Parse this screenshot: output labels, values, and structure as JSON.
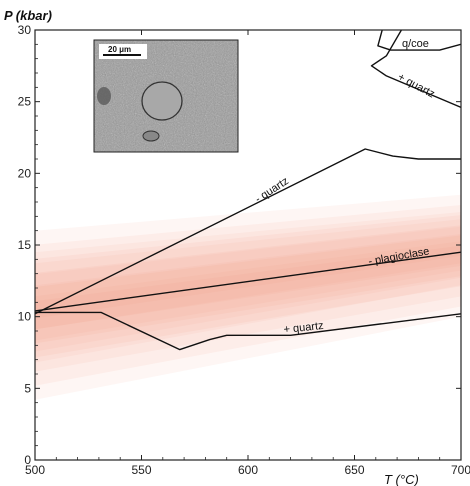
{
  "chart_data": {
    "type": "line",
    "xlabel": "T (°C)",
    "ylabel": "P (kbar)",
    "xlim": [
      500,
      700
    ],
    "ylim": [
      0,
      30
    ],
    "x_ticks": [
      500,
      550,
      600,
      650,
      700
    ],
    "y_ticks": [
      0,
      5,
      10,
      15,
      20,
      25,
      30
    ],
    "grid": false,
    "bands": {
      "color": "#e8604c",
      "inner_color": "#f08878",
      "x": [
        500,
        700
      ],
      "outer": {
        "lower": [
          4.2,
          10.0
        ],
        "upper": [
          16.0,
          18.5
        ]
      },
      "inner": {
        "lower": [
          6.8,
          12.2
        ],
        "upper": [
          14.5,
          17.3
        ]
      }
    },
    "series": [
      {
        "label": "- quartz",
        "points": [
          [
            500,
            10.2
          ],
          [
            655,
            21.7
          ],
          [
            668,
            21.2
          ],
          [
            680,
            21.0
          ],
          [
            700,
            21.0
          ]
        ]
      },
      {
        "label": "- plagioclase",
        "points": [
          [
            500,
            10.4
          ],
          [
            700,
            14.5
          ]
        ]
      },
      {
        "label": "+ quartz",
        "points": [
          [
            500,
            10.3
          ],
          [
            531,
            10.3
          ],
          [
            568,
            7.7
          ],
          [
            582,
            8.4
          ],
          [
            590,
            8.7
          ],
          [
            620,
            8.7
          ],
          [
            700,
            10.2
          ]
        ]
      },
      {
        "label": "q/coe",
        "points": [
          [
            663,
            30
          ],
          [
            661,
            28.9
          ],
          [
            667,
            28.6
          ],
          [
            690,
            28.6
          ],
          [
            700,
            29.0
          ]
        ]
      },
      {
        "label": "+ quartz",
        "points": [
          [
            672,
            30
          ],
          [
            665,
            28.2
          ],
          [
            658,
            27.5
          ],
          [
            665,
            26.8
          ],
          [
            700,
            24.6
          ]
        ]
      }
    ],
    "inset": {
      "scale_bar": "20 μm"
    }
  }
}
